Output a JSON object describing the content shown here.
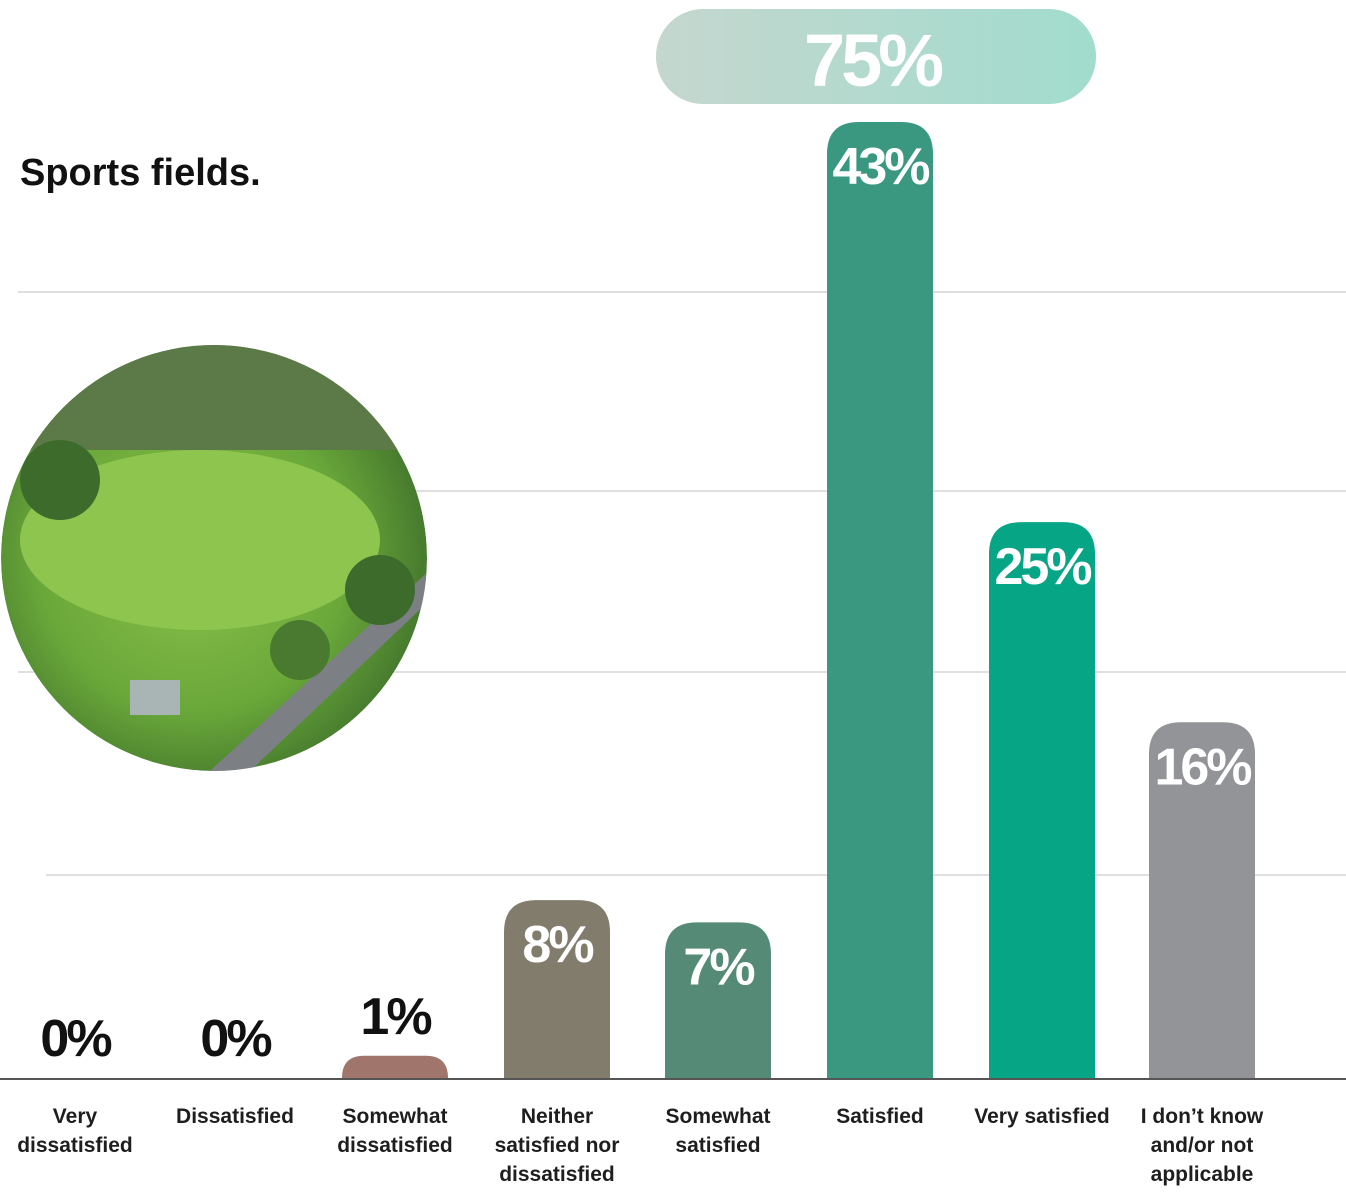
{
  "chart_data": {
    "type": "bar",
    "title": "Sports fields.",
    "categories": [
      "Very dissatisfied",
      "Dissatisfied",
      "Somewhat dissatisfied",
      "Neither satisfied nor dissatisfied",
      "Somewhat satisfied",
      "Satisfied",
      "Very satisfied",
      "I don’t know and/or not applicable"
    ],
    "values": [
      0,
      0,
      1,
      8,
      7,
      43,
      25,
      16
    ],
    "value_labels": [
      "0%",
      "0%",
      "1%",
      "8%",
      "7%",
      "43%",
      "25%",
      "16%"
    ],
    "colors": [
      "#9c7269",
      "#9c7269",
      "#a0766c",
      "#817c6c",
      "#548a76",
      "#3a9780",
      "#05a586",
      "#939498"
    ],
    "annotation": "75%"
  }
}
